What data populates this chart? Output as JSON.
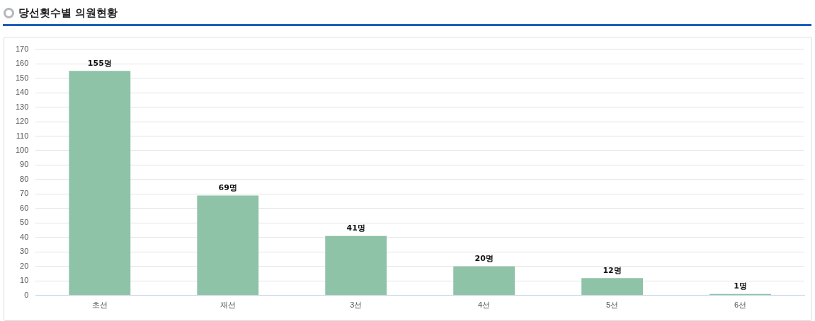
{
  "chart_data": {
    "type": "bar",
    "title": "당선횟수별 의원현황",
    "categories": [
      "초선",
      "재선",
      "3선",
      "4선",
      "5선",
      "6선"
    ],
    "values": [
      155,
      69,
      41,
      20,
      12,
      1
    ],
    "value_labels": [
      "155명",
      "69명",
      "41명",
      "20명",
      "12명",
      "1명"
    ],
    "color": "#8fc3a8",
    "ylim": [
      0,
      170
    ],
    "yticks": [
      0,
      10,
      20,
      30,
      40,
      50,
      60,
      70,
      80,
      90,
      100,
      110,
      120,
      130,
      140,
      150,
      160,
      170
    ],
    "grid": "y",
    "legend": false
  }
}
